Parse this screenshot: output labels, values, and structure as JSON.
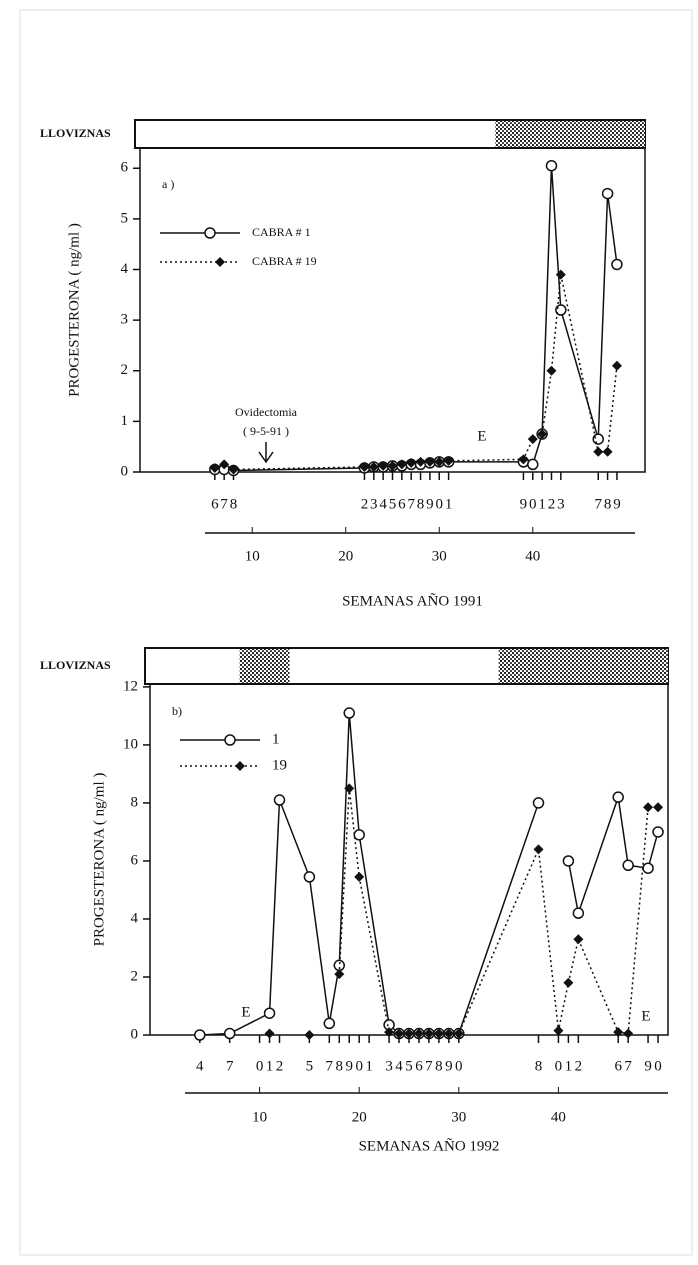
{
  "chart_data": [
    {
      "type": "line",
      "panel_label": "a )",
      "band_label": "LLOVIZNAS",
      "shaded": [
        [
          36,
          52
        ]
      ],
      "x": [
        6,
        7,
        8,
        22,
        23,
        24,
        25,
        26,
        27,
        28,
        29,
        30,
        31,
        39,
        40,
        41,
        42,
        43,
        47,
        48,
        49
      ],
      "series": [
        {
          "name": "CABRA # 1",
          "color": "#111111",
          "style": "solid",
          "marker": "circle",
          "values": [
            0.05,
            0.05,
            0.03,
            0.08,
            0.1,
            0.1,
            0.12,
            0.12,
            0.15,
            0.15,
            0.18,
            0.2,
            0.2,
            0.2,
            0.15,
            0.75,
            6.05,
            3.2,
            0.65,
            5.5,
            4.1
          ]
        },
        {
          "name": "CABRA # 19",
          "color": "#111111",
          "style": "dotted",
          "marker": "diamond",
          "values": [
            0.08,
            0.15,
            0.05,
            0.1,
            0.1,
            0.12,
            0.12,
            0.15,
            0.18,
            0.2,
            0.2,
            0.2,
            0.22,
            0.25,
            0.65,
            0.75,
            2.0,
            3.9,
            0.4,
            0.4,
            2.1
          ]
        }
      ],
      "xlim": [
        -2,
        52
      ],
      "xticks": [
        6,
        7,
        8,
        {
          "value": 22,
          "label": "2"
        },
        {
          "value": 23,
          "label": "3"
        },
        {
          "value": 24,
          "label": "4"
        },
        {
          "value": 25,
          "label": "5"
        },
        {
          "value": 26,
          "label": "6"
        },
        {
          "value": 27,
          "label": "7"
        },
        {
          "value": 28,
          "label": "8"
        },
        {
          "value": 29,
          "label": "9"
        },
        {
          "value": 30,
          "label": "0"
        },
        {
          "value": 31,
          "label": "1"
        },
        {
          "value": 39,
          "label": "9"
        },
        {
          "value": 40,
          "label": "0"
        },
        {
          "value": 41,
          "label": "1"
        },
        {
          "value": 42,
          "label": "2"
        },
        {
          "value": 43,
          "label": "3"
        },
        {
          "value": 47,
          "label": "7"
        },
        {
          "value": 48,
          "label": "8"
        },
        {
          "value": 49,
          "label": "9"
        }
      ],
      "xticks2": [
        10,
        20,
        30,
        40
      ],
      "xlabel": "SEMANAS AÑO 1991",
      "ylabel": "PROGESTERONA ( ng/ml )",
      "ylim": [
        0,
        6.4
      ],
      "yticks": [
        0,
        1,
        2,
        3,
        4,
        5,
        6
      ],
      "annotations": [
        "Ovidectomia",
        "( 9-5-91 )",
        "E"
      ]
    },
    {
      "type": "line",
      "panel_label": "b)",
      "band_label": "LLOVIZNAS",
      "shaded": [
        [
          8,
          13
        ],
        [
          34,
          51
        ]
      ],
      "x": [
        4,
        7,
        11,
        12,
        15,
        17,
        18,
        19,
        20,
        23,
        24,
        25,
        26,
        27,
        28,
        29,
        30,
        38,
        40,
        41,
        42,
        46,
        47,
        49,
        50
      ],
      "series": [
        {
          "name": "1",
          "color": "#111111",
          "style": "solid",
          "marker": "circle",
          "values": [
            0,
            0.05,
            0.75,
            8.1,
            5.45,
            0.4,
            2.4,
            11.1,
            6.9,
            0.35,
            0.05,
            0.05,
            0.05,
            0.05,
            0.05,
            0.05,
            0.05,
            8.0,
            null,
            6.0,
            4.2,
            8.2,
            5.85,
            5.75,
            7.0
          ]
        },
        {
          "name": "19",
          "color": "#111111",
          "style": "dotted",
          "marker": "diamond",
          "values": [
            null,
            null,
            0.05,
            null,
            0,
            null,
            2.1,
            8.5,
            5.45,
            0.1,
            0.05,
            0.05,
            0.05,
            0.05,
            0.05,
            0.05,
            0.05,
            6.4,
            0.15,
            1.8,
            3.3,
            0.1,
            0.05,
            7.85,
            7.85
          ]
        }
      ],
      "xlim": [
        -1,
        51
      ],
      "xticks": [
        4,
        7,
        {
          "value": 10,
          "label": "0"
        },
        {
          "value": 11,
          "label": "1"
        },
        {
          "value": 12,
          "label": "2"
        },
        {
          "value": 15,
          "label": "5"
        },
        {
          "value": 17,
          "label": "7"
        },
        {
          "value": 18,
          "label": "8"
        },
        {
          "value": 19,
          "label": "9"
        },
        {
          "value": 20,
          "label": "0"
        },
        {
          "value": 21,
          "label": "1"
        },
        {
          "value": 23,
          "label": "3"
        },
        {
          "value": 24,
          "label": "4"
        },
        {
          "value": 25,
          "label": "5"
        },
        {
          "value": 26,
          "label": "6"
        },
        {
          "value": 27,
          "label": "7"
        },
        {
          "value": 28,
          "label": "8"
        },
        {
          "value": 29,
          "label": "9"
        },
        {
          "value": 30,
          "label": "0"
        },
        {
          "value": 38,
          "label": "8"
        },
        {
          "value": 40,
          "label": "0"
        },
        {
          "value": 41,
          "label": "1"
        },
        {
          "value": 42,
          "label": "2"
        },
        {
          "value": 46,
          "label": "6"
        },
        {
          "value": 47,
          "label": "7"
        },
        {
          "value": 49,
          "label": "9"
        },
        {
          "value": 50,
          "label": "0"
        }
      ],
      "xticks2": [
        10,
        20,
        30,
        40
      ],
      "xlabel": "SEMANAS AÑO 1992",
      "ylabel": "PROGESTERONA ( ng/ml )",
      "ylim": [
        0,
        12.1
      ],
      "yticks": [
        0,
        2,
        4,
        6,
        8,
        10,
        12
      ],
      "annotations": [
        "E",
        "E"
      ]
    }
  ]
}
